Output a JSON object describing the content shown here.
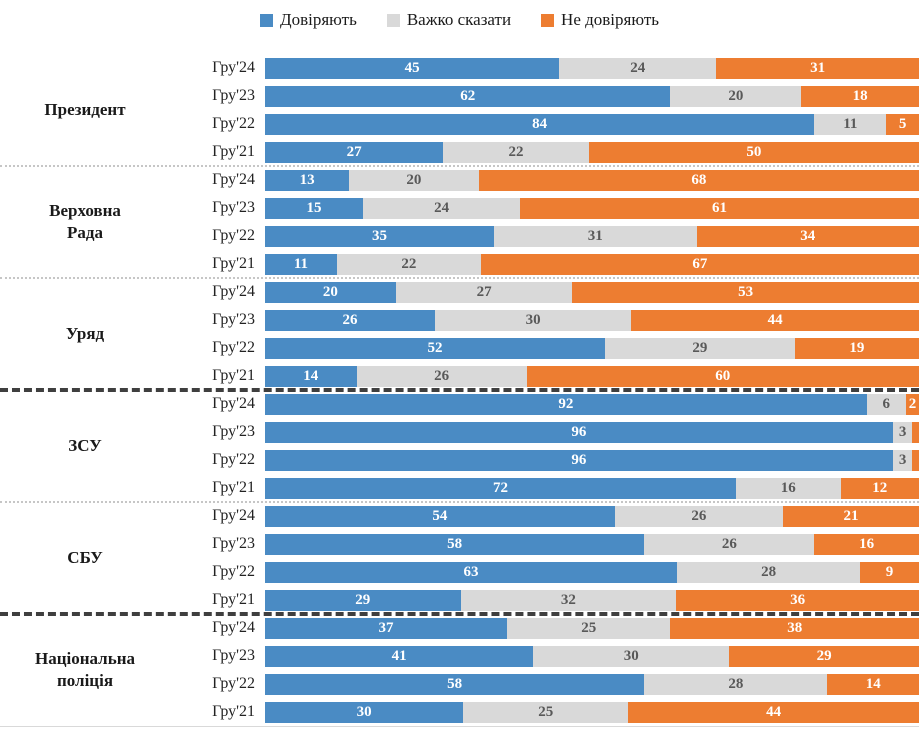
{
  "legend": {
    "items": [
      {
        "label": "Довіряють",
        "color": "#4A8BC4"
      },
      {
        "label": "Важко сказати",
        "color": "#D9D9D9"
      },
      {
        "label": "Не  довіряють",
        "color": "#ED7D31"
      }
    ]
  },
  "chart_data": {
    "type": "bar",
    "variant": "horizontal-stacked",
    "unit": "percent",
    "x_range": [
      0,
      100
    ],
    "grid": false,
    "legend_position": "top",
    "series": [
      "Довіряють",
      "Важко сказати",
      "Не довіряють"
    ],
    "colors": [
      "#4A8BC4",
      "#D9D9D9",
      "#ED7D31"
    ],
    "value_label_colors": [
      "#ffffff",
      "#595959",
      "#ffffff"
    ],
    "min_value_for_label": 2,
    "groups": [
      {
        "name": "Президент",
        "divider_after": "dotted",
        "rows": [
          {
            "label": "Гру'24",
            "values": [
              45,
              24,
              31
            ]
          },
          {
            "label": "Гру'23",
            "values": [
              62,
              20,
              18
            ]
          },
          {
            "label": "Гру'22",
            "values": [
              84,
              11,
              5
            ]
          },
          {
            "label": "Гру'21",
            "values": [
              27,
              22,
              50
            ]
          }
        ]
      },
      {
        "name": "Верховна\nРада",
        "divider_after": "dotted",
        "rows": [
          {
            "label": "Гру'24",
            "values": [
              13,
              20,
              68
            ]
          },
          {
            "label": "Гру'23",
            "values": [
              15,
              24,
              61
            ]
          },
          {
            "label": "Гру'22",
            "values": [
              35,
              31,
              34
            ]
          },
          {
            "label": "Гру'21",
            "values": [
              11,
              22,
              67
            ]
          }
        ]
      },
      {
        "name": "Уряд",
        "divider_after": "dashed",
        "rows": [
          {
            "label": "Гру'24",
            "values": [
              20,
              27,
              53
            ]
          },
          {
            "label": "Гру'23",
            "values": [
              26,
              30,
              44
            ]
          },
          {
            "label": "Гру'22",
            "values": [
              52,
              29,
              19
            ]
          },
          {
            "label": "Гру'21",
            "values": [
              14,
              26,
              60
            ]
          }
        ]
      },
      {
        "name": "ЗСУ",
        "divider_after": "dotted",
        "rows": [
          {
            "label": "Гру'24",
            "values": [
              92,
              6,
              2
            ]
          },
          {
            "label": "Гру'23",
            "values": [
              96,
              3,
              1
            ]
          },
          {
            "label": "Гру'22",
            "values": [
              96,
              3,
              1
            ]
          },
          {
            "label": "Гру'21",
            "values": [
              72,
              16,
              12
            ]
          }
        ]
      },
      {
        "name": "СБУ",
        "divider_after": "dashed",
        "rows": [
          {
            "label": "Гру'24",
            "values": [
              54,
              26,
              21
            ]
          },
          {
            "label": "Гру'23",
            "values": [
              58,
              26,
              16
            ]
          },
          {
            "label": "Гру'22",
            "values": [
              63,
              28,
              9
            ]
          },
          {
            "label": "Гру'21",
            "values": [
              29,
              32,
              36
            ]
          }
        ]
      },
      {
        "name": "Національна\nполіція",
        "divider_after": null,
        "rows": [
          {
            "label": "Гру'24",
            "values": [
              37,
              25,
              38
            ]
          },
          {
            "label": "Гру'23",
            "values": [
              41,
              30,
              29
            ]
          },
          {
            "label": "Гру'22",
            "values": [
              58,
              28,
              14
            ]
          },
          {
            "label": "Гру'21",
            "values": [
              30,
              25,
              44
            ]
          }
        ]
      }
    ]
  }
}
